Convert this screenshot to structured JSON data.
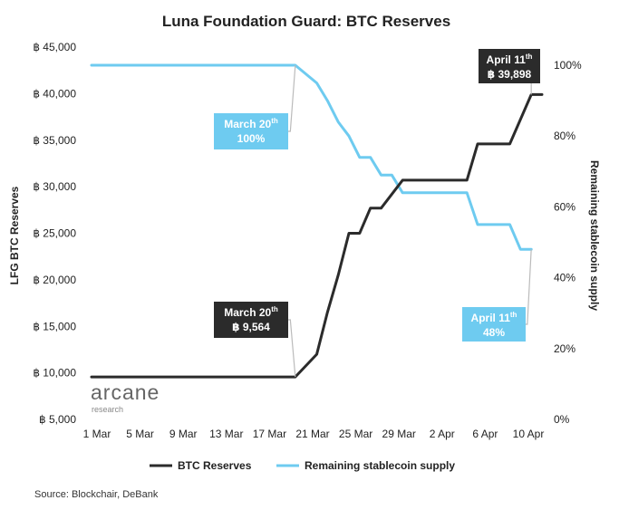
{
  "chart_data": {
    "type": "line",
    "title": "Luna Foundation Guard: BTC Reserves",
    "ylabel_left": "LFG BTC Reserves",
    "ylabel_right": "Remaining stablecoin supply",
    "y_left_ticks": [
      "฿ 5,000",
      "฿ 10,000",
      "฿ 15,000",
      "฿ 20,000",
      "฿ 25,000",
      "฿ 30,000",
      "฿ 35,000",
      "฿ 40,000",
      "฿ 45,000"
    ],
    "y_left_range": [
      5000,
      45000
    ],
    "y_right_ticks": [
      "0%",
      "20%",
      "40%",
      "60%",
      "80%",
      "100%"
    ],
    "y_right_range": [
      0,
      100
    ],
    "x_ticks": [
      "1 Mar",
      "5 Mar",
      "9 Mar",
      "13 Mar",
      "17 Mar",
      "21 Mar",
      "25 Mar",
      "29 Mar",
      "2 Apr",
      "6 Apr",
      "10 Apr"
    ],
    "x_range": [
      "2022-03-01",
      "2022-04-12"
    ],
    "grid": false,
    "legend_position": "bottom",
    "series": [
      {
        "name": "BTC Reserves",
        "axis": "left",
        "color": "#2b2b2b",
        "points": [
          [
            "2022-03-01",
            9564
          ],
          [
            "2022-03-20",
            9564
          ],
          [
            "2022-03-22",
            12000
          ],
          [
            "2022-03-23",
            16500
          ],
          [
            "2022-03-24",
            20500
          ],
          [
            "2022-03-25",
            25000
          ],
          [
            "2022-03-26",
            25000
          ],
          [
            "2022-03-27",
            27700
          ],
          [
            "2022-03-28",
            27700
          ],
          [
            "2022-03-30",
            30700
          ],
          [
            "2022-04-05",
            30700
          ],
          [
            "2022-04-06",
            34600
          ],
          [
            "2022-04-09",
            34600
          ],
          [
            "2022-04-11",
            39898
          ],
          [
            "2022-04-12",
            39898
          ]
        ]
      },
      {
        "name": "Remaining stablecoin supply",
        "axis": "right",
        "color": "#6ecbf0",
        "points": [
          [
            "2022-03-01",
            100
          ],
          [
            "2022-03-20",
            100
          ],
          [
            "2022-03-22",
            95
          ],
          [
            "2022-03-23",
            90
          ],
          [
            "2022-03-24",
            84
          ],
          [
            "2022-03-25",
            80
          ],
          [
            "2022-03-26",
            74
          ],
          [
            "2022-03-27",
            74
          ],
          [
            "2022-03-28",
            69
          ],
          [
            "2022-03-29",
            69
          ],
          [
            "2022-03-30",
            64
          ],
          [
            "2022-04-05",
            64
          ],
          [
            "2022-04-06",
            55
          ],
          [
            "2022-04-09",
            55
          ],
          [
            "2022-04-10",
            48
          ],
          [
            "2022-04-11",
            48
          ]
        ]
      }
    ],
    "annotations": [
      {
        "id": "btc-apr11",
        "series": "BTC Reserves",
        "date": "2022-04-11",
        "value": 39898,
        "line1": "April 11",
        "sup": "th",
        "line2": "฿ 39,898",
        "style": "dark"
      },
      {
        "id": "btc-mar20",
        "series": "BTC Reserves",
        "date": "2022-03-20",
        "value": 9564,
        "line1": "March 20",
        "sup": "th",
        "line2": "฿ 9,564",
        "style": "dark"
      },
      {
        "id": "supply-mar20",
        "series": "Remaining stablecoin supply",
        "date": "2022-03-20",
        "value": 100,
        "line1": "March 20",
        "sup": "th",
        "line2": "100%",
        "style": "light"
      },
      {
        "id": "supply-apr11",
        "series": "Remaining stablecoin supply",
        "date": "2022-04-11",
        "value": 48,
        "line1": "April 11",
        "sup": "th",
        "line2": "48%",
        "style": "light"
      }
    ]
  },
  "legend": {
    "btc_label": "BTC Reserves",
    "btc_color": "#2b2b2b",
    "supply_label": "Remaining stablecoin supply",
    "supply_color": "#6ecbf0"
  },
  "logo": {
    "main": "arcane",
    "sub": "research"
  },
  "source_text": "Source: Blockchair, DeBank",
  "colors": {
    "dark_callout": "#2b2b2b",
    "light_callout": "#6ecbf0"
  }
}
